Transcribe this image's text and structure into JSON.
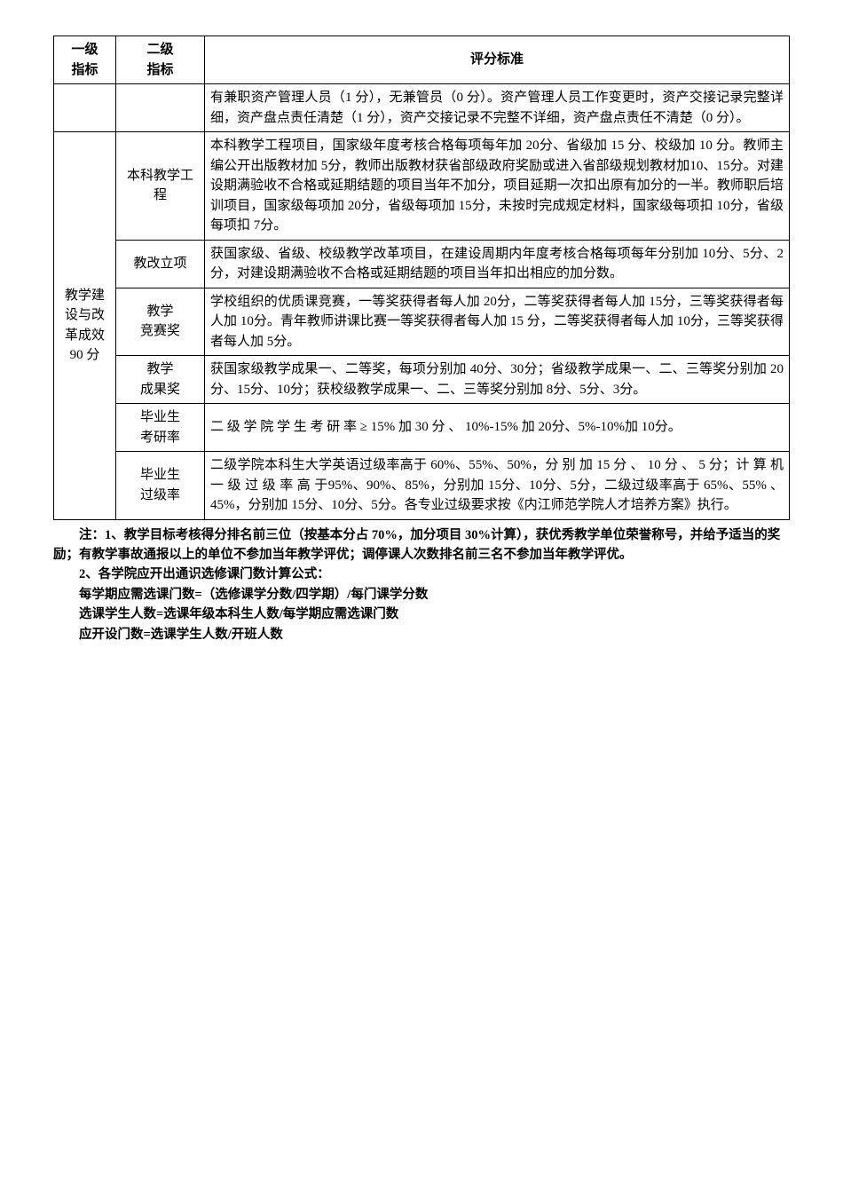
{
  "headers": {
    "c1": "一级\n指标",
    "c2": "二级\n指标",
    "c3": "评分标准"
  },
  "rows": {
    "r0": {
      "criteria": "有兼职资产管理人员（1 分），无兼管员（0 分）。资产管理人员工作变更时，资产交接记录完整详细，资产盘点责任清楚（1 分），资产交接记录不完整不详细，资产盘点责任不清楚（0 分）。"
    },
    "group": {
      "l1": "教学建设与改革成效90 分",
      "r1": {
        "l2": "本科教学工程",
        "criteria": "本科教学工程项目，国家级年度考核合格每项每年加 20分、省级加 15 分、校级加 10 分。教师主编公开出版教材加 5分，教师出版教材获省部级政府奖励或进入省部级规划教材加10、15分。对建设期满验收不合格或延期结题的项目当年不加分，项目延期一次扣出原有加分的一半。教师职后培训项目，国家级每项加 20分，省级每项加 15分，未按时完成规定材料，国家级每项扣 10分，省级每项扣 7分。"
      },
      "r2": {
        "l2": "教改立项",
        "criteria": "获国家级、省级、校级教学改革项目，在建设周期内年度考核合格每项每年分别加 10分、5分、2分，对建设期满验收不合格或延期结题的项目当年扣出相应的加分数。"
      },
      "r3": {
        "l2": "教学\n竞赛奖",
        "criteria": "学校组织的优质课竞赛，一等奖获得者每人加 20分，二等奖获得者每人加 15分，三等奖获得者每人加 10分。青年教师讲课比赛一等奖获得者每人加 15 分，二等奖获得者每人加 10分，三等奖获得者每人加 5分。"
      },
      "r4": {
        "l2": "教学\n成果奖",
        "criteria": "获国家级教学成果一、二等奖，每项分别加 40分、30分；省级教学成果一、二、三等奖分别加 20分、15分、10分；获校级教学成果一、二、三等奖分别加 8分、5分、3分。"
      },
      "r5": {
        "l2": "毕业生\n考研率",
        "criteria": "二 级 学 院 学 生 考 研 率 ≥ 15% 加 30 分 、 10%-15% 加 20分、5%-10%加 10分。"
      },
      "r6": {
        "l2": "毕业生\n过级率",
        "criteria": "二级学院本科生大学英语过级率高于 60%、55%、50%，分 别 加 15 分 、 10 分 、 5 分；计 算 机 一 级 过 级 率 高 于95%、90%、85%，分别加 15分、10分、5分，二级过级率高于 65%、55% 、45%，分别加 15分、10分、5分。各专业过级要求按《内江师范学院人才培养方案》执行。"
      }
    }
  },
  "notes": {
    "n1": "注：1、教学目标考核得分排名前三位（按基本分占 70%，加分项目 30%计算），获优秀教学单位荣誉称号，并给予适当的奖励；有教学事故通报以上的单位不参加当年教学评优；调停课人次数排名前三名不参加当年教学评优。",
    "n2": "2、各学院应开出通识选修课门数计算公式：",
    "n3": "每学期应需选课门数=（选修课学分数/四学期）/每门课学分数",
    "n4": "选课学生人数=选课年级本科生人数/每学期应需选课门数",
    "n5": "应开设门数=选课学生人数/开班人数"
  }
}
